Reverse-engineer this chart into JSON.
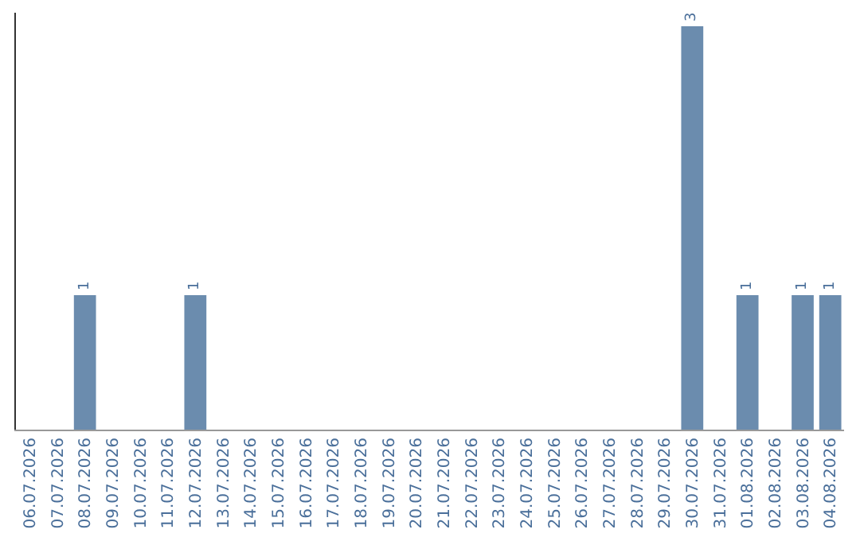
{
  "chart_data": {
    "type": "bar",
    "categories": [
      "06.07.2026",
      "07.07.2026",
      "08.07.2026",
      "09.07.2026",
      "10.07.2026",
      "11.07.2026",
      "12.07.2026",
      "13.07.2026",
      "14.07.2026",
      "15.07.2026",
      "16.07.2026",
      "17.07.2026",
      "18.07.2026",
      "19.07.2026",
      "20.07.2026",
      "21.07.2026",
      "22.07.2026",
      "23.07.2026",
      "24.07.2026",
      "25.07.2026",
      "26.07.2026",
      "27.07.2026",
      "28.07.2026",
      "29.07.2026",
      "30.07.2026",
      "31.07.2026",
      "01.08.2026",
      "02.08.2026",
      "03.08.2026",
      "04.08.2026"
    ],
    "values": [
      0,
      0,
      1,
      0,
      0,
      0,
      1,
      0,
      0,
      0,
      0,
      0,
      0,
      0,
      0,
      0,
      0,
      0,
      0,
      0,
      0,
      0,
      0,
      0,
      3,
      0,
      1,
      0,
      1,
      1
    ],
    "value_labels": [
      null,
      null,
      "1",
      null,
      null,
      null,
      "1",
      null,
      null,
      null,
      null,
      null,
      null,
      null,
      null,
      null,
      null,
      null,
      null,
      null,
      null,
      null,
      null,
      null,
      "3",
      null,
      "1",
      null,
      "1",
      "1"
    ],
    "color": "#6b8cae",
    "ylim": [
      0,
      3.1
    ]
  }
}
